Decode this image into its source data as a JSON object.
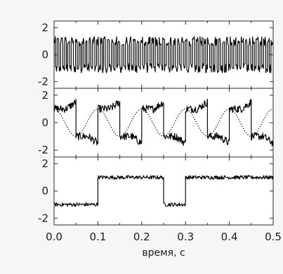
{
  "chart_data": [
    {
      "type": "line",
      "panel": "top",
      "title": "",
      "xlabel": "",
      "ylabel": "",
      "xlim": [
        0,
        0.5
      ],
      "ylim": [
        -2.5,
        2.5
      ],
      "y_ticks": [
        -2,
        0,
        2
      ],
      "y_tick_labels": [
        "-2",
        "0",
        "2"
      ],
      "series": [
        {
          "style": "solid",
          "levels": [
            -1,
            1
          ],
          "x_switch": [
            0.003,
            0.007,
            0.011,
            0.015,
            0.02,
            0.024,
            0.028,
            0.031,
            0.035,
            0.039,
            0.044,
            0.049,
            0.053,
            0.057,
            0.061,
            0.064,
            0.068,
            0.072,
            0.075,
            0.08,
            0.084,
            0.088,
            0.093,
            0.097,
            0.101,
            0.106,
            0.11,
            0.113,
            0.117,
            0.122,
            0.126,
            0.131,
            0.135,
            0.139,
            0.143,
            0.146,
            0.15,
            0.155,
            0.159,
            0.163,
            0.168,
            0.172,
            0.176,
            0.181,
            0.185,
            0.189,
            0.193,
            0.197,
            0.202,
            0.206,
            0.21,
            0.214,
            0.219,
            0.223,
            0.227,
            0.231,
            0.236,
            0.24,
            0.244,
            0.248,
            0.252,
            0.256,
            0.261,
            0.265,
            0.269,
            0.273,
            0.277,
            0.282,
            0.286,
            0.29,
            0.295,
            0.299,
            0.303,
            0.308,
            0.312,
            0.316,
            0.321,
            0.325,
            0.329,
            0.333,
            0.338,
            0.342,
            0.346,
            0.35,
            0.355,
            0.359,
            0.363,
            0.367,
            0.372,
            0.376,
            0.38,
            0.385,
            0.389,
            0.393,
            0.398,
            0.402,
            0.406,
            0.41,
            0.415,
            0.419,
            0.423,
            0.427,
            0.432,
            0.436,
            0.44,
            0.444,
            0.449,
            0.453,
            0.457,
            0.461,
            0.466,
            0.47,
            0.474,
            0.478,
            0.483,
            0.487,
            0.491,
            0.495,
            0.5
          ],
          "start_level": 1
        }
      ]
    },
    {
      "type": "line",
      "panel": "middle",
      "title": "",
      "xlabel": "",
      "ylabel": "",
      "xlim": [
        0,
        0.5
      ],
      "ylim": [
        -2.5,
        2.5
      ],
      "y_ticks": [
        -2,
        0,
        2
      ],
      "y_tick_labels": [
        "-2",
        "0",
        "2"
      ],
      "series": [
        {
          "style": "solid",
          "levels": [
            -1,
            1
          ],
          "x_switch": [
            0.05,
            0.1,
            0.15,
            0.2,
            0.25,
            0.3,
            0.35,
            0.4,
            0.45,
            0.5
          ],
          "start_level": 1,
          "relaxation_level_before_switch": 1.5
        },
        {
          "style": "dotted",
          "function": "periodic drive",
          "amplitude": 1,
          "period": 0.1,
          "x_first_max": 0.0
        }
      ]
    },
    {
      "type": "line",
      "panel": "bottom",
      "title": "",
      "xlabel": "время, с",
      "ylabel": "",
      "xlim": [
        0,
        0.5
      ],
      "ylim": [
        -2.5,
        2.5
      ],
      "y_ticks": [
        -2,
        0,
        2
      ],
      "y_tick_labels": [
        "-2",
        "0",
        "2"
      ],
      "x_ticks": [
        0.0,
        0.1,
        0.2,
        0.3,
        0.4,
        0.5
      ],
      "x_tick_labels": [
        "0.0",
        "0.1",
        "0.2",
        "0.3",
        "0.4",
        "0.5"
      ],
      "series": [
        {
          "style": "solid",
          "levels": [
            -1,
            1
          ],
          "segments": [
            {
              "x_start": 0.0,
              "x_end": 0.1,
              "level": -1
            },
            {
              "x_start": 0.1,
              "x_end": 0.25,
              "level": 1
            },
            {
              "x_start": 0.25,
              "x_end": 0.3,
              "level": -1
            },
            {
              "x_start": 0.3,
              "x_end": 0.5,
              "level": 1
            }
          ]
        }
      ]
    }
  ]
}
